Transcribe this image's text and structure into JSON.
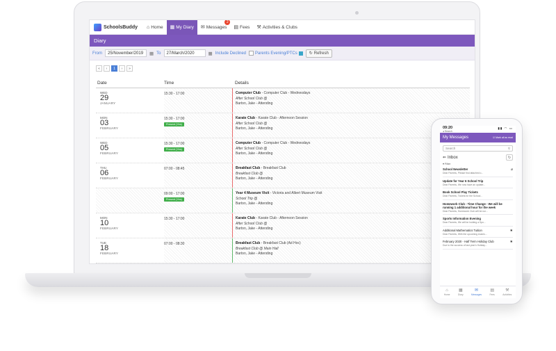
{
  "laptop": {
    "nav": {
      "brand": "SchoolsBuddy",
      "items": [
        {
          "label": "Home",
          "icon": "home-icon",
          "glyph": "⌂",
          "active": false,
          "badge": ""
        },
        {
          "label": "My Diary",
          "icon": "calendar-icon",
          "glyph": "▦",
          "active": true,
          "badge": ""
        },
        {
          "label": "Messages",
          "icon": "envelope-icon",
          "glyph": "✉",
          "active": false,
          "badge": "2"
        },
        {
          "label": "Fees",
          "icon": "fees-icon",
          "glyph": "▤",
          "active": false,
          "badge": ""
        },
        {
          "label": "Activities & Clubs",
          "icon": "activities-icon",
          "glyph": "⚒",
          "active": false,
          "badge": ""
        }
      ]
    },
    "page_title": "Diary",
    "filters": {
      "from_label": "From",
      "from_value": "25/November/2019",
      "to_label": "To",
      "to_value": "27/March/2020",
      "include_declined": "Include Declined",
      "parents_evening": "Parents Evening/PTCs",
      "refresh": "Refresh"
    },
    "pager": [
      "«",
      "‹",
      "1",
      "›",
      "»"
    ],
    "pager_active": "1",
    "table": {
      "headers": {
        "date": "Date",
        "time": "Time",
        "details": "Details"
      },
      "rows": [
        {
          "dow": "WED",
          "day": "29",
          "month": "JANUARY",
          "time": "15:30 - 17:00",
          "present": "",
          "title": "Computer Club",
          "desc": " - Computer Club - Wednesdays",
          "sub": "After School Club @",
          "who": "Barton, Jake - Attending",
          "accent": "red"
        },
        {
          "dow": "MON",
          "day": "03",
          "month": "FEBRUARY",
          "time": "15:30 - 17:00",
          "present": "Present (Yes)",
          "title": "Karate Club",
          "desc": " - Karate Club - Afternoon Session",
          "sub": "After School Club @",
          "who": "Barton, Jake - Attending",
          "accent": "red"
        },
        {
          "dow": "WED",
          "day": "05",
          "month": "FEBRUARY",
          "time": "15:30 - 17:00",
          "present": "Present (Yes)",
          "title": "Computer Club",
          "desc": " - Computer Club - Wednesdays",
          "sub": "After School Club @",
          "who": "Barton, Jake - Attending",
          "accent": "red"
        },
        {
          "dow": "THU",
          "day": "06",
          "month": "FEBRUARY",
          "time": "07:00 - 08:45",
          "present": "",
          "title": "Breakfast Club",
          "desc": " - Breakfast Club",
          "sub": "Breakfast Club @",
          "who": "Barton, Jake - Attending",
          "accent": "red"
        },
        {
          "dow": "",
          "day": "",
          "month": "",
          "time": "09:00 - 17:00",
          "present": "Present (Yes)",
          "title": "Year 4 Museum Visit",
          "desc": " - Victoria and Albert Museum Visit",
          "sub": "School Trip @",
          "who": "Barton, Jake - Attending",
          "accent": "green"
        },
        {
          "dow": "MON",
          "day": "10",
          "month": "FEBRUARY",
          "time": "15:30 - 17:00",
          "present": "",
          "title": "Karate Club",
          "desc": " - Karate Club - Afternoon Session",
          "sub": "After School Club @",
          "who": "Barton, Jake - Attending",
          "accent": "red"
        },
        {
          "dow": "TUE",
          "day": "18",
          "month": "FEBRUARY",
          "time": "07:00 - 08:30",
          "present": "",
          "title": "Breakfast Club",
          "desc": " - Breakfast Club (Ad Hoc)",
          "sub": "Breakfast Club @ Main Hall",
          "who": "Barton, Jake - Attending",
          "accent": "green"
        }
      ]
    }
  },
  "phone": {
    "status_time": "09:20",
    "status_search": "◂ Search",
    "status_icons": "▮▮ ◠ ▭",
    "header_title": "My Messages",
    "mark_all_read": "Mark all as read",
    "search_placeholder": "Search",
    "folder": "Inbox",
    "filter": "Filter",
    "messages": [
      {
        "title": "School Newsletter",
        "preview": "Dear Parents,   Please find attached o...",
        "icon": "paperclip-icon",
        "glyph": "⌀",
        "bold": true
      },
      {
        "title": "Update for Year 6 School Trip",
        "preview": "Dear Parents, We now have an update...",
        "icon": "",
        "glyph": "",
        "bold": true
      },
      {
        "title": "Book School Play Tickets",
        "preview": "Dear Parents,    Tickets for the School...",
        "icon": "",
        "glyph": "",
        "bold": true
      },
      {
        "title": "Homework Club - Time Change - We will be running 1 additional hour for the week",
        "preview": "Dear Parents, Homework Club will be run...",
        "icon": "",
        "glyph": "",
        "bold": true
      },
      {
        "title": "Sports Information Evening",
        "preview": "Dear Parents, We will be holding a Spo...",
        "icon": "",
        "glyph": "",
        "bold": true
      },
      {
        "title": "Additional Mathematics Tuition",
        "preview": "Dear Parents, With the upcoming exams...",
        "icon": "star-icon",
        "glyph": "★",
        "bold": false
      },
      {
        "title": "February 2020 - Half Term Holiday Club",
        "preview": "Due to the success of last year's Holiday...",
        "icon": "star-icon",
        "glyph": "★",
        "bold": false
      }
    ],
    "tabs": [
      {
        "label": "Home",
        "icon": "home-icon",
        "glyph": "⌂",
        "active": false
      },
      {
        "label": "Diary",
        "icon": "calendar-icon",
        "glyph": "▦",
        "active": false
      },
      {
        "label": "Messages",
        "icon": "envelope-icon",
        "glyph": "✉",
        "active": true
      },
      {
        "label": "Fees",
        "icon": "fees-icon",
        "glyph": "▤",
        "active": false
      },
      {
        "label": "Activities",
        "icon": "activities-icon",
        "glyph": "⚒",
        "active": false
      }
    ]
  }
}
